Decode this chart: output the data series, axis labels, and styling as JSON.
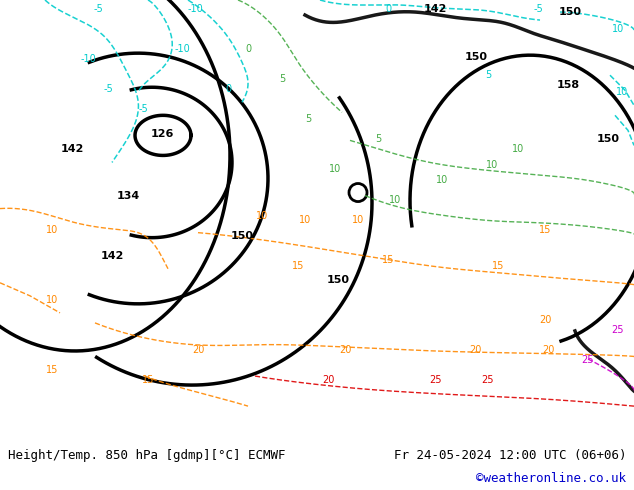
{
  "title_left": "Height/Temp. 850 hPa [gdmp][°C] ECMWF",
  "title_right": "Fr 24-05-2024 12:00 UTC (06+06)",
  "credit": "©weatheronline.co.uk",
  "fig_bg": "#ffffff",
  "footer_text_color": "#000000",
  "credit_color": "#0000cc",
  "figsize": [
    6.34,
    4.9
  ],
  "dpi": 100,
  "label_fontsize": 7,
  "footer_fontsize": 9,
  "cyan": "#00cccc",
  "green": "#44aa44",
  "orange": "#ff8800",
  "red": "#dd0000",
  "magenta": "#cc00cc",
  "black": "#000000",
  "map_bg": "#c8e6a0"
}
